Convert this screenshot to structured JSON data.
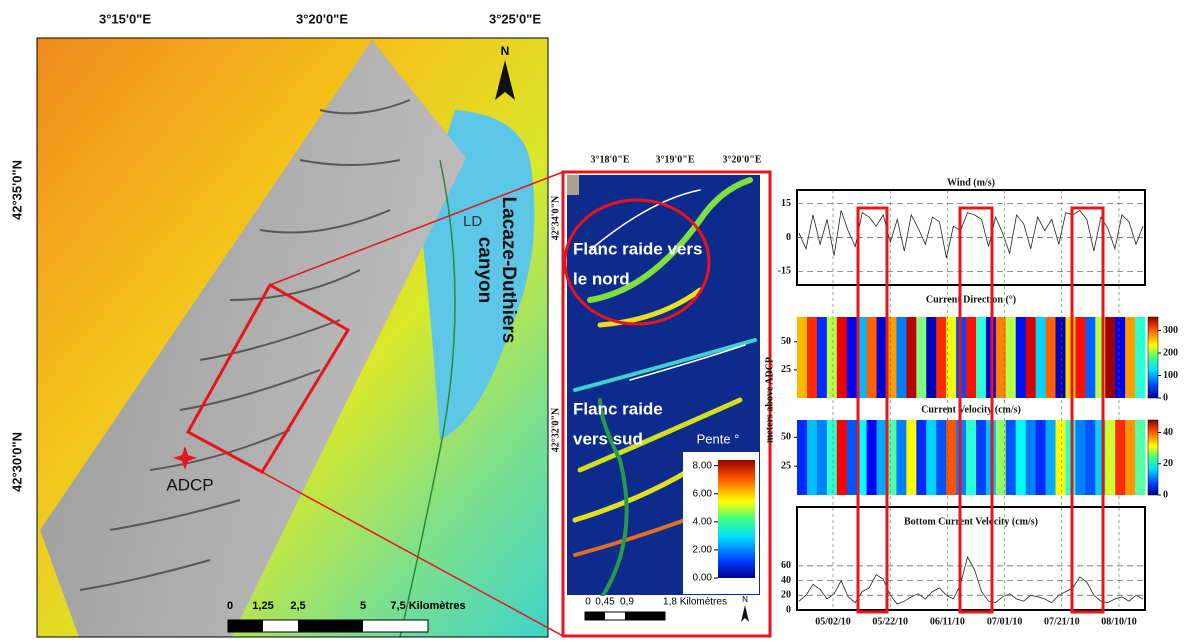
{
  "overview_map": {
    "lon_labels": [
      "3°15'0\"E",
      "3°20'0\"E",
      "3°25'0\"E"
    ],
    "lat_labels": [
      "42°35'0\"N",
      "42°30'0\"N"
    ],
    "north": "N",
    "ld_label": "LD",
    "canyon_label": [
      "Lacaze-Duthiers",
      "canyon"
    ],
    "adcp_label": "ADCP",
    "scale_labels": [
      "0",
      "1,25",
      "2,5",
      "5",
      "7,5 Kilomètres"
    ]
  },
  "slope_map": {
    "lon_labels": [
      "3°18'0\"E",
      "3°19'0\"E",
      "3°20'0\"E"
    ],
    "lat_labels": [
      "42°34'0\"N",
      "42°32'0\"N"
    ],
    "annotations": [
      "Flanc raide vers",
      "le nord",
      "Flanc raide",
      "vers sud"
    ],
    "legend_title": "Pente °",
    "clim": [
      0,
      8.4
    ],
    "legend_ticks": [
      {
        "value": 8,
        "label": "8.00"
      },
      {
        "value": 6,
        "label": "6.00"
      },
      {
        "value": 4,
        "label": "4.00"
      },
      {
        "value": 2,
        "label": "2.00"
      },
      {
        "value": 0,
        "label": "0.00"
      }
    ],
    "scale_labels": [
      "0",
      "0,45",
      "0,9",
      "1,8 Kilomètres"
    ],
    "north": "N"
  },
  "chart_data": [
    {
      "type": "line",
      "title": "Wind (m/s)",
      "color": "#222",
      "ylim": [
        -21,
        21
      ],
      "yticks": [
        15,
        0,
        -15
      ],
      "values": [
        2,
        -5,
        10,
        -3,
        8,
        -8,
        12,
        3,
        -4,
        11,
        9,
        5,
        10,
        -2,
        8,
        -6,
        10,
        4,
        -3,
        9,
        7,
        -9,
        5,
        3,
        11,
        10,
        8,
        -4,
        9,
        2,
        -7,
        10,
        6,
        -5,
        9,
        3,
        8,
        -3,
        11,
        10,
        12,
        8,
        -6,
        9,
        4,
        -5,
        10,
        7,
        -3,
        5
      ]
    },
    {
      "type": "heatmap",
      "title": "Current Direction (°)",
      "ylabel": "meters above ADCP",
      "ylim": [
        0,
        72
      ],
      "yticks": [
        50,
        25
      ],
      "clim": [
        0,
        360
      ],
      "cticks": [
        300,
        200,
        100,
        0
      ],
      "values": [
        250,
        300,
        60,
        200,
        320,
        40,
        110,
        280,
        30,
        260,
        90,
        340,
        180,
        20,
        300,
        220,
        70,
        310,
        150,
        30,
        270,
        200,
        50,
        330,
        120,
        280,
        20,
        240,
        310,
        80,
        200,
        350,
        40,
        260,
        150
      ]
    },
    {
      "type": "heatmap",
      "title": "Current Velocity (cm/s)",
      "ylim": [
        0,
        65
      ],
      "yticks": [
        50,
        25
      ],
      "clim": [
        0,
        48
      ],
      "cticks": [
        40,
        20,
        0
      ],
      "values": [
        8,
        15,
        12,
        20,
        42,
        10,
        18,
        6,
        14,
        22,
        12,
        30,
        8,
        16,
        10,
        38,
        12,
        20,
        9,
        15,
        25,
        10,
        18,
        12,
        8,
        14,
        30,
        20,
        12,
        10,
        16,
        28,
        40,
        35,
        22
      ]
    },
    {
      "type": "line",
      "title": "Bottom Current Velocity (cm/s)",
      "color": "#222",
      "ylim": [
        0,
        140
      ],
      "yticks": [
        60,
        40,
        20,
        0
      ],
      "xticks": [
        "05/02/10",
        "05/22/10",
        "06/11/10",
        "07/01/10",
        "07/21/10",
        "08/10/10"
      ],
      "values": [
        12,
        20,
        35,
        28,
        15,
        22,
        40,
        18,
        10,
        25,
        30,
        48,
        42,
        20,
        8,
        12,
        18,
        22,
        15,
        25,
        30,
        20,
        15,
        35,
        72,
        55,
        25,
        12,
        10,
        18,
        22,
        15,
        12,
        20,
        18,
        15,
        10,
        20,
        25,
        30,
        45,
        38,
        20,
        12,
        10,
        15,
        18,
        12,
        20,
        15
      ]
    }
  ]
}
